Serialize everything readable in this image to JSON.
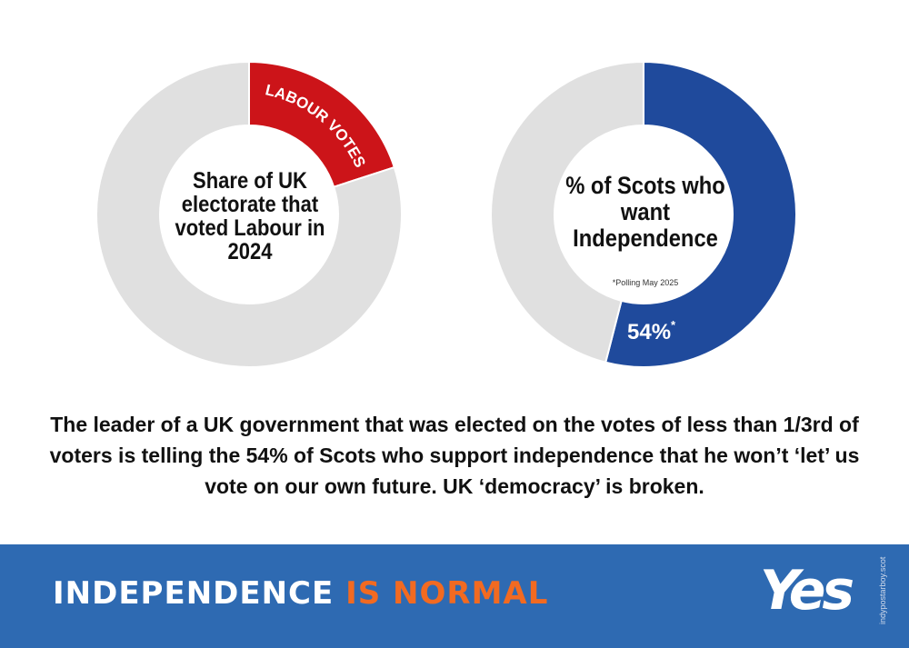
{
  "chart_data": [
    {
      "type": "pie",
      "title": "Share of UK electorate that voted Labour in 2024",
      "slices": [
        {
          "label": "LABOUR VOTES",
          "value": 20,
          "color": "#cc1419"
        },
        {
          "label": "",
          "value": 80,
          "color": "#e0e0e0"
        }
      ]
    },
    {
      "type": "pie",
      "title": "% of Scots who want Independence",
      "note": "*Polling May 2025",
      "slices": [
        {
          "label": "54%",
          "value": 54,
          "color": "#1f4a9c"
        },
        {
          "label": "",
          "value": 46,
          "color": "#e0e0e0"
        }
      ]
    }
  ],
  "labels": {
    "c1_title": "Share of UK electorate that voted Labour in 2024",
    "c1_slice": "LABOUR VOTES",
    "c2_title": "% of Scots who want Independence",
    "c2_note": "*Polling May 2025",
    "c2_value": "54%",
    "c2_value_mark": "*"
  },
  "caption": "The leader of a UK government that was elected on the votes of less than 1/3rd of voters is telling the 54% of Scots who support independence that he won’t ‘let’ us vote on our own future. UK ‘democracy’ is broken.",
  "footer": {
    "slogan_part1": "INDEPENDENCE ",
    "slogan_part2": "IS NORMAL",
    "logo": "Yes",
    "credit": "indypostarboy.scot"
  },
  "colors": {
    "red": "#cc1419",
    "blue": "#1f4a9c",
    "grey": "#e0e0e0",
    "footer": "#2e6ab2",
    "accent": "#f26a21"
  }
}
